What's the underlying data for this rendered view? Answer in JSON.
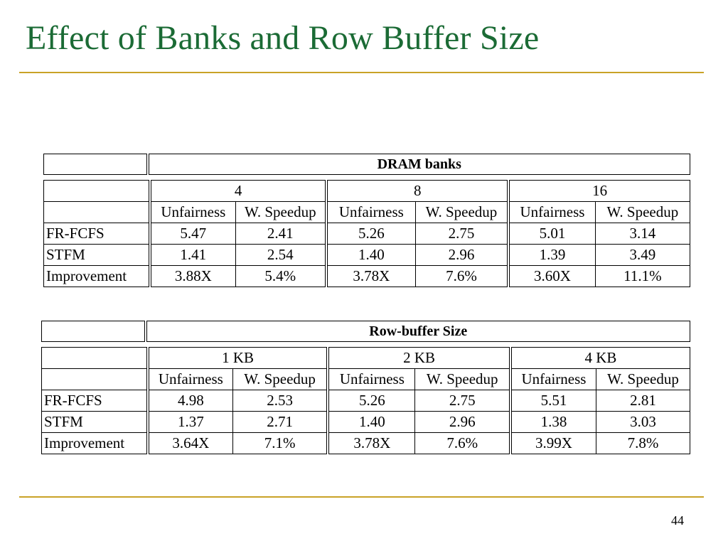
{
  "slide": {
    "title": "Effect of Banks and Row Buffer Size",
    "page_number": "44",
    "colors": {
      "title": "#1b6b35",
      "rule": "#c9a227"
    }
  },
  "banks_table": {
    "header": "DRAM banks",
    "groups": [
      "4",
      "8",
      "16"
    ],
    "subheaders": [
      "Unfairness",
      "W. Speedup",
      "Unfairness",
      "W. Speedup",
      "Unfairness",
      "W. Speedup"
    ],
    "rows": [
      {
        "label": "FR-FCFS",
        "cells": [
          "5.47",
          "2.41",
          "5.26",
          "2.75",
          "5.01",
          "3.14"
        ]
      },
      {
        "label": "STFM",
        "cells": [
          "1.41",
          "2.54",
          "1.40",
          "2.96",
          "1.39",
          "3.49"
        ]
      },
      {
        "label": "Improvement",
        "cells": [
          "3.88X",
          "5.4%",
          "3.78X",
          "7.6%",
          "3.60X",
          "11.1%"
        ]
      }
    ]
  },
  "rowbuf_table": {
    "header": "Row-buffer Size",
    "groups": [
      "1 KB",
      "2 KB",
      "4 KB"
    ],
    "subheaders": [
      "Unfairness",
      "W. Speedup",
      "Unfairness",
      "W. Speedup",
      "Unfairness",
      "W. Speedup"
    ],
    "rows": [
      {
        "label": "FR-FCFS",
        "cells": [
          "4.98",
          "2.53",
          "5.26",
          "2.75",
          "5.51",
          "2.81"
        ]
      },
      {
        "label": "STFM",
        "cells": [
          "1.37",
          "2.71",
          "1.40",
          "2.96",
          "1.38",
          "3.03"
        ]
      },
      {
        "label": "Improvement",
        "cells": [
          "3.64X",
          "7.1%",
          "3.78X",
          "7.6%",
          "3.99X",
          "7.8%"
        ]
      }
    ]
  }
}
